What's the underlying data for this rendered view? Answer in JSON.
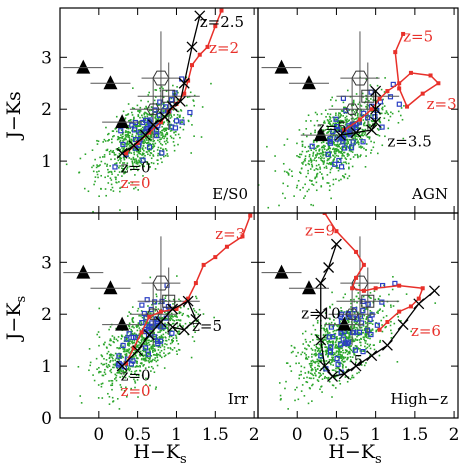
{
  "chart_data": {
    "type": "scatter",
    "layout": "2x2 panels with shared axes",
    "xlabel": "H−K",
    "xlabel_sub": "s",
    "ylabels": {
      "top": "J−Ks",
      "bottom_main": "J−K",
      "bottom_sub": "s"
    },
    "xlim": [
      -0.5,
      2.05
    ],
    "ylim": [
      0,
      3.95
    ],
    "x_tick_labels": [
      "0",
      "0.5",
      "1",
      "1.5",
      "2"
    ],
    "x_ticks": [
      0,
      0.5,
      1,
      1.5,
      2
    ],
    "y_tick_labels_top": [
      "1",
      "2",
      "3"
    ],
    "y_ticks_top": [
      1,
      2,
      3
    ],
    "y_tick_labels_bottom": [
      "0",
      "1",
      "2",
      "3"
    ],
    "y_ticks_bottom": [
      0,
      1,
      2,
      3
    ],
    "colors": {
      "field": "#2aa52a",
      "model_red": "#e8302a",
      "model_black": "#000000",
      "sample": "#2b3fc4"
    },
    "symbols": {
      "triangles": [
        [
          -0.2,
          2.8
        ],
        [
          0.15,
          2.5
        ]
      ],
      "errorbar_points": [
        {
          "x": 0.8,
          "y": 2.6,
          "xerr": 0.25,
          "yerr": 0.9,
          "marker": "hexagon"
        },
        {
          "x": 0.9,
          "y": 2.25,
          "xerr": 0.4,
          "yerr": 0.65,
          "marker": "square"
        },
        {
          "x": 0.7,
          "y": 2.0,
          "xerr": 0.3,
          "yerr": 0.6,
          "marker": "hexagon-small"
        }
      ]
    },
    "panels": [
      {
        "tag": "E/S0",
        "triangle_extra": [
          [
            0.3,
            1.75
          ]
        ],
        "red_track": [
          [
            0.35,
            1.15
          ],
          [
            0.5,
            1.35
          ],
          [
            0.65,
            1.55
          ],
          [
            0.8,
            1.75
          ],
          [
            0.9,
            1.95
          ],
          [
            1.0,
            2.1
          ],
          [
            1.1,
            2.3
          ],
          [
            1.15,
            2.55
          ],
          [
            1.2,
            2.85
          ],
          [
            1.3,
            3.05
          ],
          [
            1.4,
            3.2
          ],
          [
            1.5,
            3.6
          ],
          [
            1.58,
            3.9
          ]
        ],
        "black_track": [
          [
            0.3,
            1.15
          ],
          [
            0.45,
            1.3
          ],
          [
            0.6,
            1.5
          ],
          [
            0.7,
            1.7
          ],
          [
            0.85,
            1.85
          ],
          [
            0.95,
            2.05
          ],
          [
            1.05,
            2.15
          ],
          [
            1.1,
            2.5
          ],
          [
            1.2,
            3.2
          ],
          [
            1.3,
            3.8
          ]
        ],
        "labels": [
          {
            "text": "z=2.5",
            "x": 1.3,
            "y": 3.58,
            "color": "black"
          },
          {
            "text": "z=2",
            "x": 1.42,
            "y": 3.08,
            "color": "red"
          },
          {
            "text": "z=0",
            "x": 0.28,
            "y": 0.78,
            "color": "black"
          },
          {
            "text": "z=0",
            "x": 0.28,
            "y": 0.48,
            "color": "red"
          }
        ]
      },
      {
        "tag": "AGN",
        "triangle_extra": [
          [
            0.3,
            1.5
          ]
        ],
        "red_track": [
          [
            0.6,
            1.6
          ],
          [
            0.8,
            1.8
          ],
          [
            0.95,
            2.0
          ],
          [
            1.05,
            2.2
          ],
          [
            1.15,
            2.35
          ],
          [
            1.3,
            2.5
          ],
          [
            1.45,
            2.7
          ],
          [
            1.7,
            2.65
          ],
          [
            1.8,
            2.5
          ],
          [
            1.6,
            2.3
          ],
          [
            1.4,
            2.05
          ],
          [
            1.3,
            2.4
          ],
          [
            1.25,
            3.1
          ],
          [
            1.35,
            3.45
          ]
        ],
        "black_track": [
          [
            0.55,
            1.5
          ],
          [
            0.75,
            1.55
          ],
          [
            0.95,
            1.6
          ],
          [
            1.0,
            1.75
          ],
          [
            1.0,
            2.0
          ],
          [
            1.0,
            2.35
          ]
        ],
        "labels": [
          {
            "text": "z=5",
            "x": 1.35,
            "y": 3.3,
            "color": "red"
          },
          {
            "text": "z=3",
            "x": 1.65,
            "y": 2.0,
            "color": "red"
          },
          {
            "text": "z=5",
            "x": 0.25,
            "y": 1.55,
            "color": "black"
          },
          {
            "text": "z=3.5",
            "x": 1.15,
            "y": 1.28,
            "color": "black"
          }
        ]
      },
      {
        "tag": "Irr",
        "triangle_extra": [
          [
            0.3,
            1.8
          ]
        ],
        "red_track": [
          [
            0.35,
            1.05
          ],
          [
            0.45,
            1.35
          ],
          [
            0.55,
            1.65
          ],
          [
            0.65,
            1.95
          ],
          [
            0.8,
            2.05
          ],
          [
            1.0,
            2.1
          ],
          [
            1.15,
            2.3
          ],
          [
            1.25,
            2.6
          ],
          [
            1.35,
            2.95
          ],
          [
            1.5,
            3.1
          ],
          [
            1.65,
            3.3
          ],
          [
            1.85,
            3.5
          ],
          [
            1.95,
            3.9
          ]
        ],
        "black_track": [
          [
            0.3,
            1.0
          ],
          [
            0.5,
            1.3
          ],
          [
            0.65,
            1.6
          ],
          [
            0.8,
            1.85
          ],
          [
            0.95,
            2.1
          ],
          [
            1.15,
            2.25
          ],
          [
            1.25,
            1.9
          ],
          [
            1.1,
            1.7
          ],
          [
            0.95,
            1.75
          ]
        ],
        "labels": [
          {
            "text": "z=3",
            "x": 1.5,
            "y": 3.45,
            "color": "red"
          },
          {
            "text": "z=5",
            "x": 1.2,
            "y": 1.68,
            "color": "black"
          },
          {
            "text": "z=0",
            "x": 0.28,
            "y": 0.72,
            "color": "black"
          },
          {
            "text": "z=0",
            "x": 0.28,
            "y": 0.42,
            "color": "red"
          }
        ]
      },
      {
        "tag": "High−z",
        "triangle_extra": [
          [
            0.6,
            1.8
          ]
        ],
        "red_track": [
          [
            0.35,
            3.95
          ],
          [
            0.5,
            3.6
          ],
          [
            0.75,
            3.2
          ],
          [
            0.85,
            2.95
          ],
          [
            0.75,
            2.7
          ],
          [
            0.7,
            2.5
          ],
          [
            0.85,
            2.45
          ],
          [
            1.0,
            2.5
          ],
          [
            1.3,
            2.55
          ],
          [
            1.6,
            2.5
          ],
          [
            1.55,
            2.3
          ],
          [
            1.45,
            2.15
          ],
          [
            1.3,
            2.05
          ],
          [
            1.15,
            1.85
          ],
          [
            1.05,
            1.7
          ]
        ],
        "black_track": [
          [
            0.5,
            3.35
          ],
          [
            0.4,
            2.9
          ],
          [
            0.3,
            2.6
          ],
          [
            0.3,
            2.0
          ],
          [
            0.3,
            1.5
          ],
          [
            0.35,
            1.0
          ],
          [
            0.45,
            0.8
          ],
          [
            0.6,
            0.85
          ],
          [
            0.75,
            1.0
          ],
          [
            0.95,
            1.2
          ],
          [
            1.15,
            1.4
          ],
          [
            1.35,
            1.8
          ],
          [
            1.55,
            2.2
          ],
          [
            1.75,
            2.45
          ]
        ],
        "labels": [
          {
            "text": "z=9",
            "x": 0.1,
            "y": 3.52,
            "color": "red"
          },
          {
            "text": "z=10",
            "x": 0.05,
            "y": 1.92,
            "color": "black"
          },
          {
            "text": "z=6",
            "x": 1.45,
            "y": 1.58,
            "color": "red"
          },
          {
            "text": "5",
            "x": 0.72,
            "y": 1.0,
            "color": "black"
          }
        ]
      }
    ]
  }
}
